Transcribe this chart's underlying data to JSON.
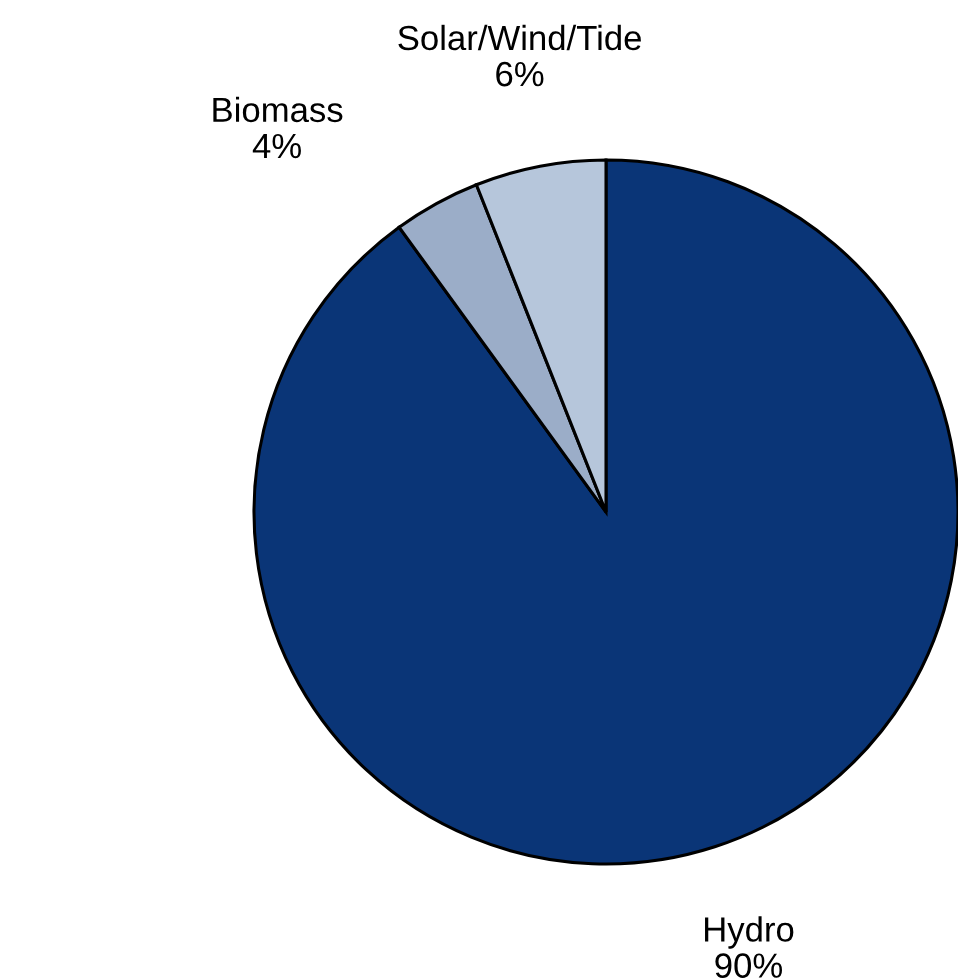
{
  "chart_data": {
    "type": "pie",
    "categories": [
      "Hydro",
      "Biomass",
      "Solar/Wind/Tide"
    ],
    "values": [
      90,
      4,
      6
    ],
    "colors": [
      "#0a3577",
      "#9badc8",
      "#b6c6db"
    ],
    "value_labels": [
      "90%",
      "4%",
      "6%"
    ]
  }
}
